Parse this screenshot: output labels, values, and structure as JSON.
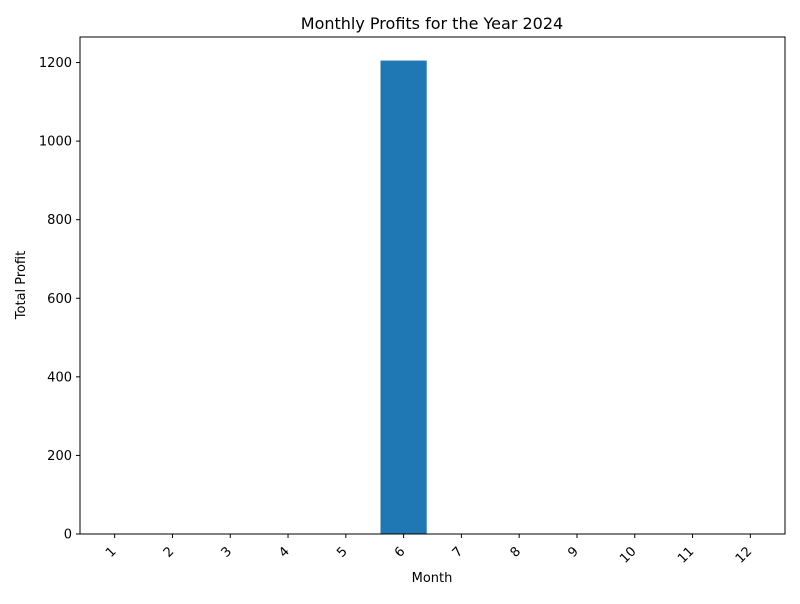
{
  "chart_data": {
    "type": "bar",
    "title": "Monthly Profits for the Year 2024",
    "xlabel": "Month",
    "ylabel": "Total Profit",
    "categories": [
      "1",
      "2",
      "3",
      "4",
      "5",
      "6",
      "7",
      "8",
      "9",
      "10",
      "11",
      "12"
    ],
    "values": [
      0,
      0,
      0,
      0,
      0,
      1205,
      0,
      0,
      0,
      0,
      0,
      0
    ],
    "ylim": [
      0,
      1265
    ],
    "yticks": [
      0,
      200,
      400,
      600,
      800,
      1000,
      1200
    ],
    "ytick_labels": [
      "0",
      "200",
      "400",
      "600",
      "800",
      "1000",
      "1200"
    ],
    "grid": false,
    "legend": "none",
    "bar_color": "#1f77b4",
    "x_tick_rotation": "45 degrees"
  }
}
